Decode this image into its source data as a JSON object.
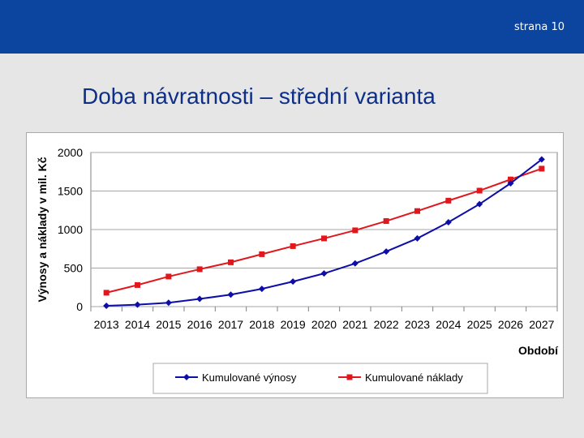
{
  "header": {
    "page_label": "strana 10",
    "bar_color": "#0b45a0"
  },
  "slide": {
    "title": "Doba návratnosti – střední varianta"
  },
  "chart_data": {
    "type": "line",
    "title": "",
    "xlabel": "Období",
    "ylabel": "Výnosy a náklady v mil. Kč",
    "categories": [
      "2013",
      "2014",
      "2015",
      "2016",
      "2017",
      "2018",
      "2019",
      "2020",
      "2021",
      "2022",
      "2023",
      "2024",
      "2025",
      "2026",
      "2027"
    ],
    "ylim": [
      0,
      2000
    ],
    "yticks": [
      "0",
      "500",
      "1000",
      "1500",
      "2000"
    ],
    "grid": true,
    "legend_position": "bottom",
    "series": [
      {
        "name": "Kumulované výnosy",
        "color": "#0d0da8",
        "marker": "diamond",
        "values": [
          10,
          25,
          50,
          100,
          155,
          230,
          325,
          430,
          560,
          715,
          885,
          1095,
          1330,
          1600,
          1910
        ]
      },
      {
        "name": "Kumulované náklady",
        "color": "#e0171c",
        "marker": "square",
        "values": [
          180,
          280,
          390,
          485,
          575,
          680,
          785,
          885,
          990,
          1110,
          1240,
          1375,
          1505,
          1650,
          1790
        ]
      }
    ]
  }
}
